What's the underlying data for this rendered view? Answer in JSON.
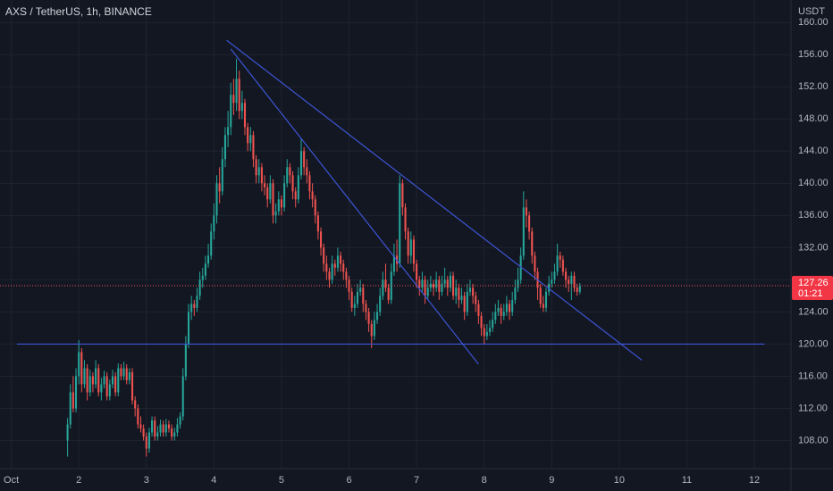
{
  "chart_data": {
    "type": "candlestick",
    "title": "AXS / TetherUS, 1h, BINANCE",
    "currency": "USDT",
    "up_color": "#26a69a",
    "down_color": "#ef5350",
    "grid": true,
    "xlim": [
      -4,
      277
    ],
    "xticks": [
      {
        "value": 0,
        "label": "Oct"
      },
      {
        "value": 24,
        "label": "2"
      },
      {
        "value": 48,
        "label": "3"
      },
      {
        "value": 72,
        "label": "4"
      },
      {
        "value": 96,
        "label": "5"
      },
      {
        "value": 120,
        "label": "6"
      },
      {
        "value": 144,
        "label": "7"
      },
      {
        "value": 168,
        "label": "8"
      },
      {
        "value": 192,
        "label": "9"
      },
      {
        "value": 216,
        "label": "10"
      },
      {
        "value": 240,
        "label": "11"
      },
      {
        "value": 264,
        "label": "12"
      }
    ],
    "ylim": [
      104.5,
      162.8
    ],
    "yticks": [
      {
        "value": 108,
        "label": "108.00"
      },
      {
        "value": 112,
        "label": "112.00"
      },
      {
        "value": 116,
        "label": "116.00"
      },
      {
        "value": 120,
        "label": "120.00"
      },
      {
        "value": 124,
        "label": "124.00"
      },
      {
        "value": 128,
        "label": "128.00"
      },
      {
        "value": 132,
        "label": "132.00"
      },
      {
        "value": 136,
        "label": "136.00"
      },
      {
        "value": 140,
        "label": "140.00"
      },
      {
        "value": 144,
        "label": "144.00"
      },
      {
        "value": 148,
        "label": "148.00"
      },
      {
        "value": 152,
        "label": "152.00"
      },
      {
        "value": 156,
        "label": "156.00"
      },
      {
        "value": 160,
        "label": "160.00"
      }
    ],
    "last_price": 127.26,
    "countdown": "01:21",
    "trendline_color": "#3d55d6",
    "trendlines": [
      {
        "x": [
          2,
          267.6
        ],
        "y": [
          120,
          120
        ]
      },
      {
        "x": [
          76.5,
          224
        ],
        "y": [
          157.8,
          118
        ]
      },
      {
        "x": [
          78,
          166
        ],
        "y": [
          156.7,
          117.5
        ]
      }
    ],
    "x": [
      20,
      21,
      22,
      23,
      24,
      25,
      26,
      27,
      28,
      29,
      30,
      31,
      32,
      33,
      34,
      35,
      36,
      37,
      38,
      39,
      40,
      41,
      42,
      43,
      44,
      45,
      46,
      47,
      48,
      49,
      50,
      51,
      52,
      53,
      54,
      55,
      56,
      57,
      58,
      59,
      60,
      61,
      62,
      63,
      64,
      65,
      66,
      67,
      68,
      69,
      70,
      71,
      72,
      73,
      74,
      75,
      76,
      77,
      78,
      79,
      80,
      81,
      82,
      83,
      84,
      85,
      86,
      87,
      88,
      89,
      90,
      91,
      92,
      93,
      94,
      95,
      96,
      97,
      98,
      99,
      100,
      101,
      102,
      103,
      104,
      105,
      106,
      107,
      108,
      109,
      110,
      111,
      112,
      113,
      114,
      115,
      116,
      117,
      118,
      119,
      120,
      121,
      122,
      123,
      124,
      125,
      126,
      127,
      128,
      129,
      130,
      131,
      132,
      133,
      134,
      135,
      136,
      137,
      138,
      139,
      140,
      141,
      142,
      143,
      144,
      145,
      146,
      147,
      148,
      149,
      150,
      151,
      152,
      153,
      154,
      155,
      156,
      157,
      158,
      159,
      160,
      161,
      162,
      163,
      164,
      165,
      166,
      167,
      168,
      169,
      170,
      171,
      172,
      173,
      174,
      175,
      176,
      177,
      178,
      179,
      180,
      181,
      182,
      183,
      184,
      185,
      186,
      187,
      188,
      189,
      190,
      191,
      192,
      193,
      194,
      195,
      196,
      197,
      198,
      199,
      200,
      201,
      202
    ],
    "ohlc": [
      [
        108,
        110.8,
        106,
        110
      ],
      [
        110,
        115,
        109.5,
        114
      ],
      [
        114,
        116,
        111.5,
        112
      ],
      [
        112,
        117,
        111.5,
        116
      ],
      [
        116,
        120.5,
        115,
        119
      ],
      [
        119,
        119.5,
        114,
        115
      ],
      [
        115,
        118,
        114.5,
        117
      ],
      [
        117,
        117.5,
        113,
        114
      ],
      [
        114,
        116.8,
        113.5,
        116
      ],
      [
        116,
        116.5,
        114,
        115
      ],
      [
        115,
        118,
        114.5,
        117
      ],
      [
        117,
        117.5,
        113.5,
        114
      ],
      [
        114,
        115.8,
        113,
        115
      ],
      [
        115,
        116.7,
        114.5,
        116
      ],
      [
        116,
        116.5,
        113,
        113.5
      ],
      [
        113.5,
        115.6,
        113,
        115
      ],
      [
        115,
        116.8,
        114.5,
        116
      ],
      [
        116,
        116.5,
        113.5,
        114
      ],
      [
        114,
        117.6,
        113.5,
        117
      ],
      [
        117,
        117.5,
        115.5,
        116
      ],
      [
        116,
        117.8,
        115.5,
        117
      ],
      [
        117,
        117.5,
        115,
        115.5
      ],
      [
        115.5,
        117,
        115,
        116.5
      ],
      [
        116.5,
        117,
        112.5,
        113
      ],
      [
        113,
        113.5,
        111,
        112
      ],
      [
        112,
        112.5,
        109.5,
        110
      ],
      [
        110,
        111,
        109,
        109.5
      ],
      [
        109.5,
        110,
        108,
        108.5
      ],
      [
        108.5,
        109,
        106,
        107
      ],
      [
        107,
        109.6,
        106.5,
        109
      ],
      [
        109,
        111,
        108.5,
        110.5
      ],
      [
        110.5,
        111,
        108,
        108.5
      ],
      [
        108.5,
        109.8,
        108,
        109
      ],
      [
        109,
        110.6,
        108.5,
        110
      ],
      [
        110,
        110.5,
        108.5,
        109
      ],
      [
        109,
        110.7,
        108.5,
        110
      ],
      [
        110,
        110.5,
        109,
        109.5
      ],
      [
        109.5,
        110,
        108,
        108.5
      ],
      [
        108.5,
        109.6,
        108,
        109
      ],
      [
        109,
        110.8,
        108.5,
        110
      ],
      [
        110,
        111.5,
        109.5,
        111
      ],
      [
        111,
        117,
        110.5,
        116
      ],
      [
        116,
        121,
        115.5,
        120
      ],
      [
        120,
        125,
        119.5,
        124
      ],
      [
        124,
        126,
        123,
        125
      ],
      [
        125,
        125.5,
        123.5,
        124.5
      ],
      [
        124.5,
        127,
        124,
        126
      ],
      [
        126,
        129,
        125.5,
        128
      ],
      [
        128,
        129.5,
        127,
        128.5
      ],
      [
        128.5,
        131,
        128,
        130
      ],
      [
        130,
        132.5,
        129.5,
        131
      ],
      [
        131,
        135,
        130.5,
        134
      ],
      [
        134,
        137.5,
        133,
        136
      ],
      [
        136,
        141,
        135,
        140
      ],
      [
        140,
        142,
        137.5,
        139
      ],
      [
        139,
        144.5,
        138.5,
        143
      ],
      [
        143,
        147,
        142,
        146
      ],
      [
        146,
        149,
        144.5,
        147
      ],
      [
        147,
        152.5,
        146,
        151
      ],
      [
        151,
        153,
        148.5,
        150
      ],
      [
        150,
        155.5,
        149,
        153
      ],
      [
        153,
        154,
        148,
        149
      ],
      [
        149,
        151.5,
        148,
        150
      ],
      [
        150,
        150.5,
        146,
        147
      ],
      [
        147,
        147.5,
        144,
        145
      ],
      [
        145,
        147,
        144,
        146
      ],
      [
        146,
        146.5,
        142,
        143
      ],
      [
        143,
        143.5,
        140,
        141
      ],
      [
        141,
        143,
        140,
        142
      ],
      [
        142,
        142.5,
        139,
        140
      ],
      [
        140,
        141,
        138.5,
        139.5
      ],
      [
        139.5,
        140,
        137,
        138
      ],
      [
        138,
        141,
        137.5,
        140
      ],
      [
        140,
        140.5,
        135,
        136
      ],
      [
        136,
        137.5,
        135,
        136.5
      ],
      [
        136.5,
        139,
        136,
        138
      ],
      [
        138,
        138.5,
        136,
        137
      ],
      [
        137,
        141,
        136.5,
        140
      ],
      [
        140,
        143,
        139.5,
        142
      ],
      [
        142,
        142.5,
        140,
        141
      ],
      [
        141,
        141.5,
        138,
        139
      ],
      [
        139,
        139.5,
        137,
        138
      ],
      [
        138,
        142,
        137.5,
        141
      ],
      [
        141,
        145.5,
        140.5,
        144
      ],
      [
        144,
        144.5,
        141,
        142
      ],
      [
        142,
        143,
        140,
        141
      ],
      [
        141,
        141.5,
        138,
        139
      ],
      [
        139,
        140,
        137,
        138
      ],
      [
        138,
        138.5,
        135,
        136
      ],
      [
        136,
        136.5,
        133,
        134
      ],
      [
        134,
        134.5,
        131,
        132
      ],
      [
        132,
        132.5,
        129,
        130
      ],
      [
        130,
        131,
        128,
        129
      ],
      [
        129,
        129.5,
        127,
        128
      ],
      [
        128,
        131,
        127.5,
        130
      ],
      [
        130,
        130.5,
        128.5,
        129.5
      ],
      [
        129.5,
        132,
        129,
        131
      ],
      [
        131,
        131.5,
        129,
        130
      ],
      [
        130,
        130.5,
        128,
        129
      ],
      [
        129,
        129.5,
        127,
        128
      ],
      [
        128,
        128.5,
        125.5,
        126.5
      ],
      [
        126.5,
        127,
        124,
        124.5
      ],
      [
        124.5,
        126,
        123.5,
        125
      ],
      [
        125,
        127.5,
        124.5,
        126.5
      ],
      [
        126.5,
        128,
        126,
        127
      ],
      [
        127,
        127.5,
        124,
        125
      ],
      [
        125,
        125.5,
        123,
        124
      ],
      [
        124,
        124.5,
        121.5,
        122.5
      ],
      [
        122.5,
        123,
        119.5,
        121
      ],
      [
        121,
        124,
        120.5,
        123
      ],
      [
        123,
        125,
        122.5,
        124
      ],
      [
        124,
        127,
        123.5,
        126
      ],
      [
        126,
        129,
        125.5,
        128
      ],
      [
        128,
        130,
        126.5,
        127
      ],
      [
        127,
        127.5,
        125,
        125.5
      ],
      [
        125.5,
        130,
        125,
        129
      ],
      [
        129,
        132.5,
        128.5,
        131
      ],
      [
        131,
        133,
        129,
        130
      ],
      [
        130,
        141,
        129.5,
        140
      ],
      [
        140,
        140.5,
        136,
        137
      ],
      [
        137,
        137.5,
        133,
        134
      ],
      [
        134,
        134.5,
        130,
        131
      ],
      [
        131,
        134,
        130,
        133
      ],
      [
        133,
        133.5,
        129,
        130
      ],
      [
        130,
        130.5,
        127,
        128
      ],
      [
        128,
        128.5,
        126,
        127
      ],
      [
        127,
        129,
        126.5,
        128
      ],
      [
        128,
        128.5,
        125,
        126
      ],
      [
        126,
        128,
        125.5,
        127
      ],
      [
        127,
        128.5,
        126.5,
        127.5
      ],
      [
        127.5,
        128,
        126,
        127
      ],
      [
        127,
        129,
        126.5,
        128
      ],
      [
        128,
        128.5,
        125.5,
        126.5
      ],
      [
        126.5,
        128.5,
        126,
        127.5
      ],
      [
        127.5,
        129.5,
        127,
        128
      ],
      [
        128,
        128.5,
        126,
        127
      ],
      [
        127,
        129,
        126.5,
        128.5
      ],
      [
        128.5,
        129,
        125.5,
        126
      ],
      [
        126,
        128,
        125,
        127
      ],
      [
        127,
        127.5,
        124.5,
        125.5
      ],
      [
        125.5,
        127,
        125,
        126
      ],
      [
        126,
        126.5,
        123,
        124
      ],
      [
        124,
        127.5,
        123.5,
        126.5
      ],
      [
        126.5,
        128,
        126,
        127
      ],
      [
        127,
        127.5,
        125,
        126
      ],
      [
        126,
        126.5,
        124,
        125
      ],
      [
        125,
        125.5,
        122.5,
        123.5
      ],
      [
        123.5,
        124,
        121,
        122
      ],
      [
        122,
        122.5,
        120,
        121
      ],
      [
        121,
        122.5,
        120.5,
        121.5
      ],
      [
        121.5,
        123,
        121,
        122
      ],
      [
        122,
        124,
        121.5,
        123
      ],
      [
        123,
        125,
        122.5,
        124
      ],
      [
        124,
        125.5,
        123.5,
        124.5
      ],
      [
        124.5,
        125,
        122.5,
        123.5
      ],
      [
        123.5,
        125,
        123,
        124
      ],
      [
        124,
        126,
        123.5,
        125
      ],
      [
        125,
        125.5,
        123,
        124
      ],
      [
        124,
        126.5,
        123.5,
        125.5
      ],
      [
        125.5,
        128,
        125,
        127
      ],
      [
        127,
        129.5,
        126.5,
        128
      ],
      [
        128,
        132,
        127.5,
        131
      ],
      [
        131,
        139,
        130.5,
        137
      ],
      [
        137,
        138,
        134.5,
        136
      ],
      [
        136,
        136.5,
        133,
        134
      ],
      [
        134,
        134.5,
        130,
        131
      ],
      [
        131,
        131.5,
        128,
        129
      ],
      [
        129,
        129.5,
        125.5,
        127
      ],
      [
        127,
        127.5,
        124.5,
        125
      ],
      [
        125,
        126,
        124,
        124.5
      ],
      [
        124.5,
        127,
        124,
        126.5
      ],
      [
        126.5,
        128.5,
        126,
        127.5
      ],
      [
        127.5,
        129,
        127,
        128
      ],
      [
        128,
        130,
        127.5,
        129
      ],
      [
        129,
        132.5,
        128.5,
        131
      ],
      [
        131,
        131.5,
        129.5,
        130.5
      ],
      [
        130.5,
        131,
        128.5,
        129
      ],
      [
        129,
        129.5,
        127,
        128
      ],
      [
        128,
        128.5,
        126.5,
        127.5
      ],
      [
        127.5,
        129,
        125.5,
        128.5
      ],
      [
        128.5,
        129,
        126.5,
        127
      ],
      [
        127,
        127.5,
        126,
        126.5
      ],
      [
        126.5,
        127.6,
        126.2,
        127.26
      ]
    ]
  }
}
